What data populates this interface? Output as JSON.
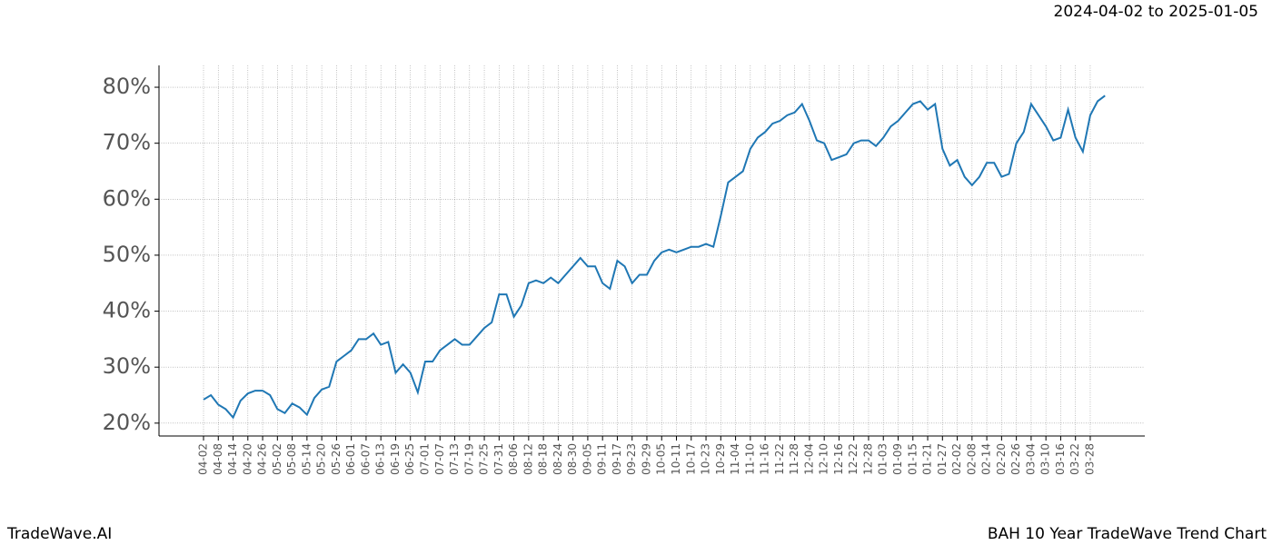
{
  "chart_data": {
    "type": "line",
    "title": "2024-04-02 to 2025-01-05",
    "footer_left": "TradeWave.AI",
    "footer_right": "BAH 10 Year TradeWave Trend Chart",
    "highlight_range": [
      "04-02",
      "01-05"
    ],
    "highlight_color": "#e6f2e6",
    "grid": true,
    "ylim": [
      17.7,
      83.9
    ],
    "yticks": [
      {
        "value": 20,
        "label": "20%"
      },
      {
        "value": 30,
        "label": "30%"
      },
      {
        "value": 40,
        "label": "40%"
      },
      {
        "value": 50,
        "label": "50%"
      },
      {
        "value": 60,
        "label": "60%"
      },
      {
        "value": 70,
        "label": "70%"
      },
      {
        "value": 80,
        "label": "80%"
      }
    ],
    "xticks": [
      "04-02",
      "04-08",
      "04-14",
      "04-20",
      "04-26",
      "05-02",
      "05-08",
      "05-14",
      "05-20",
      "05-26",
      "06-01",
      "06-07",
      "06-13",
      "06-19",
      "06-25",
      "07-01",
      "07-07",
      "07-13",
      "07-19",
      "07-25",
      "07-31",
      "08-06",
      "08-12",
      "08-18",
      "08-24",
      "08-30",
      "09-05",
      "09-11",
      "09-17",
      "09-23",
      "09-29",
      "10-05",
      "10-11",
      "10-17",
      "10-23",
      "10-29",
      "11-04",
      "11-10",
      "11-16",
      "11-22",
      "11-28",
      "12-04",
      "12-10",
      "12-16",
      "12-22",
      "12-28",
      "01-03",
      "01-09",
      "01-15",
      "01-21",
      "01-27",
      "02-02",
      "02-08",
      "02-14",
      "02-20",
      "02-26",
      "03-04",
      "03-10",
      "03-16",
      "03-22",
      "03-28"
    ],
    "series": [
      {
        "color": "#1f77b4",
        "x": [
          "04-02",
          "04-05",
          "04-08",
          "04-11",
          "04-14",
          "04-17",
          "04-20",
          "04-23",
          "04-26",
          "04-29",
          "05-02",
          "05-05",
          "05-08",
          "05-11",
          "05-14",
          "05-17",
          "05-20",
          "05-23",
          "05-26",
          "05-29",
          "06-01",
          "06-04",
          "06-07",
          "06-10",
          "06-13",
          "06-16",
          "06-19",
          "06-22",
          "06-25",
          "06-28",
          "07-01",
          "07-04",
          "07-07",
          "07-10",
          "07-13",
          "07-16",
          "07-19",
          "07-22",
          "07-25",
          "07-28",
          "07-31",
          "08-03",
          "08-06",
          "08-09",
          "08-12",
          "08-15",
          "08-18",
          "08-21",
          "08-24",
          "08-27",
          "08-30",
          "09-02",
          "09-05",
          "09-08",
          "09-11",
          "09-14",
          "09-17",
          "09-20",
          "09-23",
          "09-26",
          "09-29",
          "10-02",
          "10-05",
          "10-08",
          "10-11",
          "10-14",
          "10-17",
          "10-20",
          "10-23",
          "10-26",
          "10-29",
          "11-01",
          "11-04",
          "11-07",
          "11-10",
          "11-13",
          "11-16",
          "11-19",
          "11-22",
          "11-25",
          "11-28",
          "12-01",
          "12-04",
          "12-07",
          "12-10",
          "12-13",
          "12-16",
          "12-19",
          "12-22",
          "12-25",
          "12-28",
          "12-31",
          "01-03",
          "01-06",
          "01-09",
          "01-12",
          "01-15",
          "01-18",
          "01-21",
          "01-24",
          "01-27",
          "01-30",
          "02-02",
          "02-05",
          "02-08",
          "02-11",
          "02-14",
          "02-17",
          "02-20",
          "02-23",
          "02-26",
          "03-01",
          "03-04",
          "03-07",
          "03-10",
          "03-13",
          "03-16",
          "03-19",
          "03-22",
          "03-25",
          "03-28",
          "03-31",
          "04-03"
        ],
        "values": [
          24.2,
          25,
          23.3,
          22.5,
          21,
          24,
          25.3,
          25.8,
          25.8,
          25,
          22.5,
          21.8,
          23.5,
          22.8,
          21.5,
          24.5,
          26,
          26.5,
          31,
          32,
          33,
          35,
          35,
          36,
          34,
          34.5,
          29,
          30.5,
          29,
          25.5,
          31,
          31,
          33,
          34,
          35,
          34,
          34,
          35.5,
          37,
          38,
          43,
          43,
          39,
          41,
          45,
          45.5,
          45,
          46,
          45,
          46.5,
          48,
          49.5,
          48,
          48,
          45,
          44,
          49,
          48,
          45,
          46.5,
          46.5,
          49,
          50.5,
          51,
          50.5,
          51,
          51.5,
          51.5,
          52,
          51.5,
          57,
          63,
          64,
          65,
          69,
          71,
          72,
          73.5,
          74,
          75,
          75.5,
          77,
          74,
          70.5,
          70,
          67,
          67.5,
          68,
          70,
          70.5,
          70.5,
          69.5,
          71,
          73,
          74,
          75.5,
          77,
          77.5,
          76,
          77,
          69,
          66,
          67,
          64,
          62.5,
          64,
          66.5,
          66.5,
          64,
          64.5,
          70,
          72,
          77,
          75,
          73,
          70.5,
          71,
          76,
          71,
          68.5,
          75,
          77.5,
          78.5
        ]
      }
    ]
  }
}
